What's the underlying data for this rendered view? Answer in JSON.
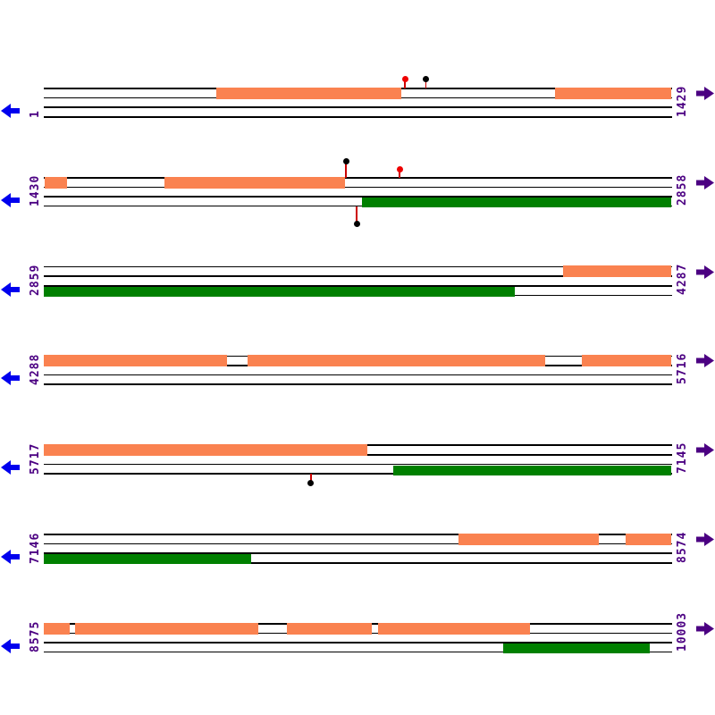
{
  "figure": {
    "description": "Linear sequence feature map, 7 tiers",
    "sequence_length": 10003,
    "bases_per_row": 1429,
    "colors": {
      "forward_feature": "#FA8250",
      "reverse_feature": "#008000",
      "marker_red": "#EE0000",
      "marker_black": "#000000",
      "marker_stem": "#CC0000",
      "left_arrow": "#0000EE",
      "right_arrow": "#4B0082",
      "coordinate_label": "#4B0082",
      "guide_line": "#000000"
    },
    "icons": {
      "left": "left-scroll-arrow",
      "right": "right-scroll-arrow"
    },
    "rows": [
      {
        "start_label": "1",
        "end_label": "1429",
        "start": 1,
        "end": 1429,
        "forward": [
          {
            "from": 394,
            "to": 814
          },
          {
            "from": 1164,
            "to": 1429
          }
        ],
        "reverse": [],
        "markers": [
          {
            "pos": 823,
            "color": "red",
            "side": "above",
            "stem": 11
          },
          {
            "pos": 871,
            "color": "black",
            "side": "above",
            "stem": 11
          }
        ]
      },
      {
        "start_label": "1430",
        "end_label": "2858",
        "start": 1430,
        "end": 2858,
        "forward": [
          {
            "from": 1432,
            "to": 1482
          },
          {
            "from": 1704,
            "to": 2115
          }
        ],
        "reverse": [
          {
            "from": 2154,
            "to": 2858
          }
        ],
        "markers": [
          {
            "pos": 2118,
            "color": "black",
            "side": "above",
            "stem": 18
          },
          {
            "pos": 2240,
            "color": "red",
            "side": "above",
            "stem": 9
          },
          {
            "pos": 2142,
            "color": "black",
            "side": "below",
            "stem": 20
          }
        ]
      },
      {
        "start_label": "2859",
        "end_label": "4287",
        "start": 2859,
        "end": 4287,
        "forward": [
          {
            "from": 4041,
            "to": 4287
          }
        ],
        "reverse": [
          {
            "from": 2859,
            "to": 3931
          }
        ],
        "markers": []
      },
      {
        "start_label": "4288",
        "end_label": "5716",
        "start": 4288,
        "end": 5716,
        "forward": [
          {
            "from": 4288,
            "to": 4705
          },
          {
            "from": 4752,
            "to": 5429
          },
          {
            "from": 5513,
            "to": 5716
          }
        ],
        "reverse": [],
        "markers": []
      },
      {
        "start_label": "5717",
        "end_label": "7145",
        "start": 5717,
        "end": 7145,
        "forward": [
          {
            "from": 5717,
            "to": 6453
          }
        ],
        "reverse": [
          {
            "from": 6512,
            "to": 7145
          }
        ],
        "markers": [
          {
            "pos": 6325,
            "color": "black",
            "side": "below",
            "stem": 10
          }
        ]
      },
      {
        "start_label": "7146",
        "end_label": "8574",
        "start": 7146,
        "end": 8574,
        "forward": [
          {
            "from": 8090,
            "to": 8409
          },
          {
            "from": 8470,
            "to": 8574
          }
        ],
        "reverse": [
          {
            "from": 7146,
            "to": 7618
          }
        ],
        "markers": []
      },
      {
        "start_label": "8575",
        "end_label": "10003",
        "start": 8575,
        "end": 10003,
        "forward": [
          {
            "from": 8575,
            "to": 8634
          },
          {
            "from": 8646,
            "to": 9064
          },
          {
            "from": 9128,
            "to": 9321
          },
          {
            "from": 9335,
            "to": 9682
          }
        ],
        "reverse": [
          {
            "from": 9621,
            "to": 9955
          }
        ],
        "markers": []
      }
    ]
  }
}
